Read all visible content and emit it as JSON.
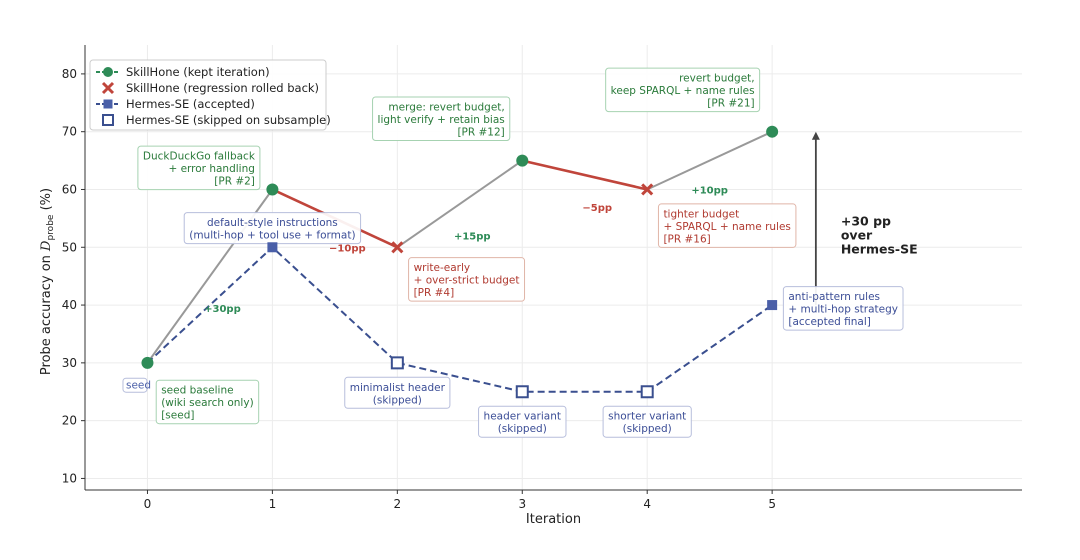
{
  "chart_data": {
    "type": "line",
    "xlabel": "Iteration",
    "ylabel_prefix": "Probe accuracy on ",
    "ylabel_symbol": "D",
    "ylabel_sub": "probe",
    "ylabel_suffix": " (%)",
    "xlim": [
      -0.5,
      7.0
    ],
    "ylim": [
      8,
      85
    ],
    "xticks": [
      0,
      1,
      2,
      3,
      4,
      5
    ],
    "yticks": [
      10,
      20,
      30,
      40,
      50,
      60,
      70,
      80
    ],
    "grid": true,
    "legend_position": "top-left",
    "colors": {
      "skillhone": "#2e8b57",
      "regression": "#c0453b",
      "hermes": "#4a5fa8",
      "hermes_line": "#3a4f8f",
      "connector": "#999999",
      "arrow": "#444444"
    },
    "legend": [
      {
        "key": "kept",
        "label": "SkillHone (kept iteration)"
      },
      {
        "key": "rolled",
        "label": "SkillHone (regression rolled back)"
      },
      {
        "key": "accepted",
        "label": "Hermes-SE (accepted)"
      },
      {
        "key": "skipped",
        "label": "Hermes-SE (skipped on subsample)"
      }
    ],
    "skillhone": [
      {
        "x": 0,
        "y": 30,
        "status": "kept"
      },
      {
        "x": 1,
        "y": 60,
        "status": "kept"
      },
      {
        "x": 2,
        "y": 50,
        "status": "rolled"
      },
      {
        "x": 3,
        "y": 65,
        "status": "kept"
      },
      {
        "x": 4,
        "y": 60,
        "status": "rolled"
      },
      {
        "x": 5,
        "y": 70,
        "status": "kept"
      }
    ],
    "hermes": [
      {
        "x": 0,
        "y": 30,
        "status": "accepted"
      },
      {
        "x": 1,
        "y": 50,
        "status": "accepted"
      },
      {
        "x": 2,
        "y": 30,
        "status": "skipped"
      },
      {
        "x": 3,
        "y": 25,
        "status": "skipped"
      },
      {
        "x": 4,
        "y": 25,
        "status": "skipped"
      },
      {
        "x": 5,
        "y": 40,
        "status": "accepted"
      }
    ],
    "deltas": [
      {
        "x": 0.6,
        "y": 39.5,
        "text": "+30pp",
        "color": "green"
      },
      {
        "x": 1.6,
        "y": 50,
        "text": "−10pp",
        "color": "red"
      },
      {
        "x": 2.6,
        "y": 52,
        "text": "+15pp",
        "color": "green"
      },
      {
        "x": 3.6,
        "y": 57,
        "text": "−5pp",
        "color": "red"
      },
      {
        "x": 4.5,
        "y": 60,
        "text": "+10pp",
        "color": "green"
      }
    ],
    "annotations": [
      {
        "x": 0.07,
        "y": 27,
        "align": "left",
        "theme": "green",
        "lines": [
          "seed baseline",
          "(wiki search only)",
          "[seed]"
        ]
      },
      {
        "x": 0.9,
        "y": 67.5,
        "align": "right",
        "theme": "green",
        "lines": [
          "DuckDuckGo fallback",
          "+ error handling",
          "[PR #2]"
        ]
      },
      {
        "x": 2.09,
        "y": 48.2,
        "align": "left",
        "theme": "red",
        "lines": [
          "write-early",
          "+ over-strict budget",
          "[PR #4]"
        ]
      },
      {
        "x": 2.9,
        "y": 76,
        "align": "right",
        "theme": "green",
        "lines": [
          "merge: revert budget,",
          "light verify + retain bias",
          "[PR #12]"
        ]
      },
      {
        "x": 4.09,
        "y": 57.5,
        "align": "left",
        "theme": "red",
        "lines": [
          "tighter budget",
          "+ SPARQL + name rules",
          "[PR #16]"
        ]
      },
      {
        "x": 4.9,
        "y": 81,
        "align": "right",
        "theme": "green",
        "lines": [
          "revert budget,",
          "keep SPARQL + name rules",
          "[PR #21]"
        ]
      },
      {
        "x": 1.0,
        "y": 56,
        "align": "center",
        "theme": "blue",
        "lines": [
          "default-style instructions",
          "(multi-hop + tool use + format)"
        ]
      },
      {
        "x": 2.0,
        "y": 27.5,
        "align": "center",
        "theme": "blue",
        "lines": [
          "minimalist header",
          "(skipped)"
        ]
      },
      {
        "x": 3.0,
        "y": 22.5,
        "align": "center",
        "theme": "blue",
        "lines": [
          "header variant",
          "(skipped)"
        ]
      },
      {
        "x": 4.0,
        "y": 22.5,
        "align": "center",
        "theme": "blue",
        "lines": [
          "shorter variant",
          "(skipped)"
        ]
      },
      {
        "x": 5.09,
        "y": 43.2,
        "align": "left",
        "theme": "blue",
        "lines": [
          "anti-pattern rules",
          "+ multi-hop strategy",
          "[accepted final]"
        ]
      }
    ],
    "partial_label": {
      "x": -0.1,
      "y": 27,
      "text": "seed"
    },
    "arrow": {
      "x": 5.35,
      "y_from": 40,
      "y_to": 70
    },
    "callout": {
      "x": 5.55,
      "y": 52,
      "lines": [
        "+30 pp",
        "over",
        "Hermes-SE"
      ]
    }
  }
}
